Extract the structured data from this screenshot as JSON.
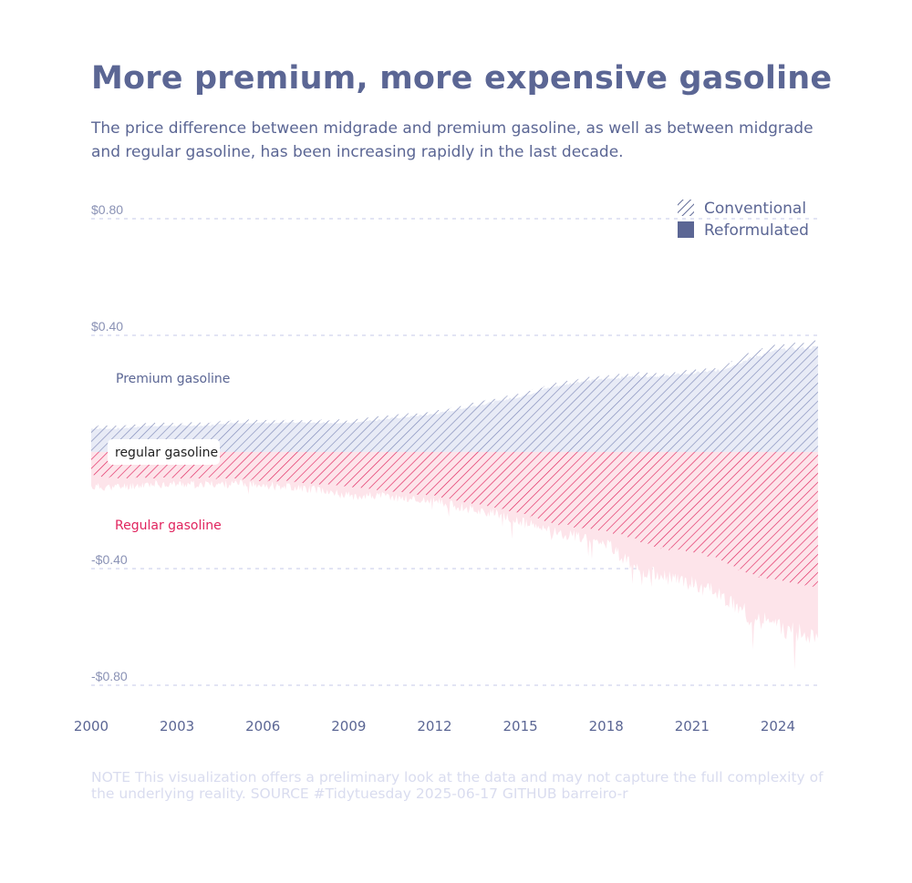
{
  "title": "More premium, more expensive gasoline",
  "subtitle": "The price difference between midgrade and premium gasoline, as well as between midgrade and regular gasoline, has been increasing rapidly in the last decade.",
  "note": "NOTE This visualization offers a preliminary look at the data and may not capture the full complexity of the underlying reality. SOURCE #Tidytuesday 2025-06-17 GITHUB barreiro-r",
  "colors": {
    "text": "#5b6694",
    "premium": "#7f8ab8",
    "premium_light": "#e8ebf6",
    "regular": "#e0245e",
    "regular_light": "#fde4ea",
    "grid": "#d9dcf0",
    "axis_text": "#8a92b5",
    "note": "#d9dcef"
  },
  "chart_data": {
    "type": "area",
    "xlabel": "",
    "ylabel": "",
    "xlim": [
      2000,
      2025.5
    ],
    "ylim": [
      -0.8,
      0.8
    ],
    "x_ticks": [
      {
        "value": 2000,
        "label": "2000"
      },
      {
        "value": 2003,
        "label": "2003"
      },
      {
        "value": 2006,
        "label": "2006"
      },
      {
        "value": 2009,
        "label": "2009"
      },
      {
        "value": 2012,
        "label": "2012"
      },
      {
        "value": 2015,
        "label": "2015"
      },
      {
        "value": 2018,
        "label": "2018"
      },
      {
        "value": 2021,
        "label": "2021"
      },
      {
        "value": 2024,
        "label": "2024"
      }
    ],
    "y_ticks": [
      {
        "value": 0.8,
        "label": "$0.80"
      },
      {
        "value": 0.4,
        "label": "$0.40"
      },
      {
        "value": -0.4,
        "label": "-$0.40"
      },
      {
        "value": -0.8,
        "label": "-$0.80"
      }
    ],
    "baseline_label": "regular gasoline",
    "legend": {
      "position": "top-right",
      "entries": [
        {
          "name": "Conventional",
          "style": "hatched"
        },
        {
          "name": "Reformulated",
          "style": "solid"
        }
      ]
    },
    "series_labels": {
      "premium": "Premium gasoline",
      "regular": "Regular gasoline"
    },
    "x": [
      2000,
      2001,
      2002,
      2003,
      2004,
      2005,
      2006,
      2007,
      2008,
      2009,
      2010,
      2011,
      2012,
      2013,
      2014,
      2015,
      2016,
      2017,
      2018,
      2019,
      2020,
      2021,
      2022,
      2023,
      2024,
      2025.4
    ],
    "series": [
      {
        "name": "Premium gasoline - Conventional",
        "values": [
          0.09,
          0.09,
          0.1,
          0.1,
          0.1,
          0.11,
          0.11,
          0.11,
          0.11,
          0.11,
          0.12,
          0.13,
          0.14,
          0.16,
          0.18,
          0.2,
          0.23,
          0.25,
          0.26,
          0.27,
          0.27,
          0.28,
          0.29,
          0.34,
          0.37,
          0.38
        ]
      },
      {
        "name": "Premium gasoline - Reformulated",
        "values": [
          0.08,
          0.08,
          0.09,
          0.09,
          0.09,
          0.1,
          0.1,
          0.1,
          0.1,
          0.1,
          0.11,
          0.12,
          0.13,
          0.15,
          0.17,
          0.19,
          0.22,
          0.24,
          0.25,
          0.26,
          0.26,
          0.27,
          0.28,
          0.32,
          0.35,
          0.36
        ]
      },
      {
        "name": "Regular gasoline - Conventional",
        "values": [
          -0.08,
          -0.09,
          -0.09,
          -0.09,
          -0.09,
          -0.09,
          -0.1,
          -0.1,
          -0.11,
          -0.12,
          -0.13,
          -0.14,
          -0.15,
          -0.17,
          -0.19,
          -0.21,
          -0.24,
          -0.26,
          -0.27,
          -0.3,
          -0.33,
          -0.34,
          -0.37,
          -0.42,
          -0.44,
          -0.46
        ]
      },
      {
        "name": "Regular gasoline - Reformulated",
        "values": [
          -0.12,
          -0.12,
          -0.11,
          -0.11,
          -0.11,
          -0.11,
          -0.11,
          -0.12,
          -0.13,
          -0.15,
          -0.15,
          -0.16,
          -0.17,
          -0.19,
          -0.21,
          -0.24,
          -0.27,
          -0.29,
          -0.31,
          -0.4,
          -0.43,
          -0.45,
          -0.49,
          -0.56,
          -0.6,
          -0.64
        ]
      }
    ]
  }
}
